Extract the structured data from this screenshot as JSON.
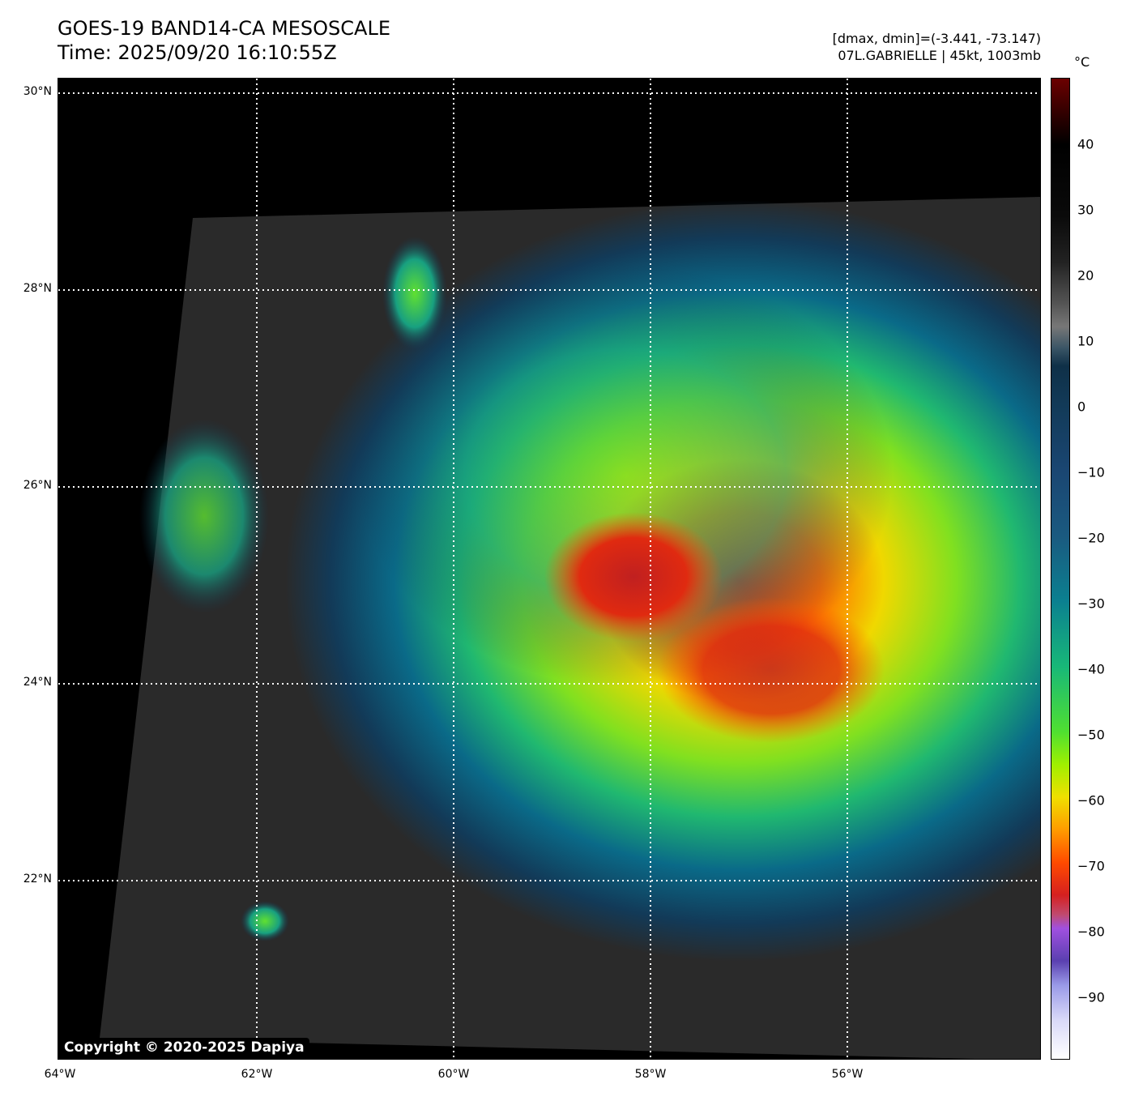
{
  "header": {
    "title": "GOES-19 BAND14-CA MESOSCALE",
    "time": "Time: 2025/09/20 16:10:55Z",
    "range": "[dmax, dmin]=(-3.441, -73.147)",
    "storm": "07L.GABRIELLE | 45kt, 1003mb"
  },
  "map": {
    "lat_labels": [
      "30°N",
      "28°N",
      "26°N",
      "24°N",
      "22°N"
    ],
    "lon_labels": [
      "64°W",
      "62°W",
      "60°W",
      "58°W",
      "56°W"
    ],
    "copyright": "Copyright © 2020-2025 Dapiya"
  },
  "colorbar": {
    "unit": "°C",
    "ticks": [
      "40",
      "30",
      "20",
      "10",
      "0",
      "−10",
      "−20",
      "−30",
      "−40",
      "−50",
      "−60",
      "−70",
      "−80",
      "−90"
    ]
  }
}
